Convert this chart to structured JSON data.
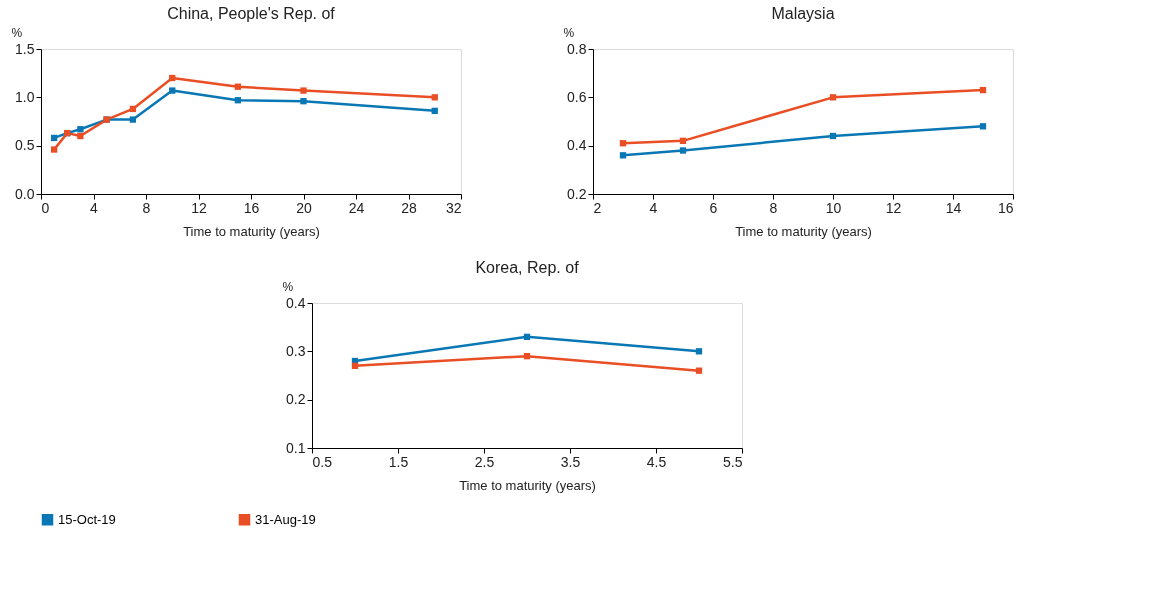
{
  "chart_data": [
    {
      "type": "line",
      "title": "China, People's Rep. of",
      "xlabel": "Time to maturity (years)",
      "ylabel": "%",
      "xlim": [
        0,
        32
      ],
      "xticks": [
        0,
        4,
        8,
        12,
        16,
        20,
        24,
        28,
        32
      ],
      "ylim": [
        0,
        1.5
      ],
      "yticks": [
        {
          "value": 0,
          "label": "0.0"
        },
        0.5,
        {
          "value": 1,
          "label": "1.0"
        },
        1.5
      ],
      "grid": false,
      "legend": "bottom",
      "marker": "square",
      "line_style": "solid",
      "x": [
        1,
        2,
        3,
        5,
        7,
        10,
        15,
        20,
        30
      ],
      "series": [
        {
          "name": "15-Oct-19",
          "color": "#0a77b5",
          "values": [
            0.58,
            0.63,
            0.67,
            0.77,
            0.77,
            1.07,
            0.97,
            0.96,
            0.86
          ]
        },
        {
          "name": "31-Aug-19",
          "color": "#e94e24",
          "values": [
            0.46,
            0.63,
            0.6,
            0.77,
            0.88,
            1.2,
            1.11,
            1.07,
            1.0
          ]
        }
      ]
    },
    {
      "type": "line",
      "title": "Malaysia",
      "xlabel": "Time to maturity (years)",
      "ylabel": "%",
      "xlim": [
        2,
        16
      ],
      "xticks": [
        2,
        4,
        6,
        8,
        10,
        12,
        14,
        16
      ],
      "ylim": [
        0.2,
        0.8
      ],
      "yticks": [
        0.2,
        0.4,
        0.6,
        0.8
      ],
      "grid": false,
      "legend": "bottom",
      "marker": "square",
      "line_style": "solid",
      "x": [
        3,
        5,
        10,
        15
      ],
      "series": [
        {
          "name": "15-Oct-19",
          "color": "#0a77b5",
          "values": [
            0.36,
            0.38,
            0.44,
            0.48
          ]
        },
        {
          "name": "31-Aug-19",
          "color": "#e94e24",
          "values": [
            0.41,
            0.42,
            0.6,
            0.63
          ]
        }
      ]
    },
    {
      "type": "line",
      "title": "Korea, Rep. of",
      "xlabel": "Time to maturity (years)",
      "ylabel": "%",
      "xlim": [
        0.5,
        5.5
      ],
      "xticks": [
        0.5,
        1.5,
        2.5,
        3.5,
        4.5,
        5.5
      ],
      "ylim": [
        0.1,
        0.4
      ],
      "yticks": [
        0.1,
        0.2,
        0.3,
        0.4
      ],
      "grid": false,
      "legend": "bottom",
      "marker": "square",
      "line_style": "solid",
      "x": [
        1,
        3,
        5
      ],
      "series": [
        {
          "name": "15-Oct-19",
          "color": "#0a77b5",
          "values": [
            0.28,
            0.33,
            0.3
          ]
        },
        {
          "name": "31-Aug-19",
          "color": "#e94e24",
          "values": [
            0.27,
            0.29,
            0.26
          ]
        }
      ]
    }
  ]
}
